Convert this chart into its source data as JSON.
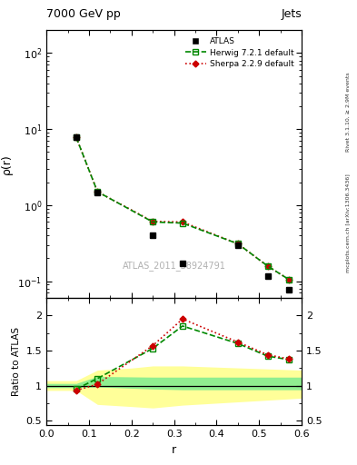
{
  "title": "7000 GeV pp",
  "title_right": "Jets",
  "xlabel": "r",
  "ylabel_main": "ρ(r)",
  "ylabel_ratio": "Ratio to ATLAS",
  "watermark": "ATLAS_2011_S8924791",
  "right_label_top": "Rivet 3.1.10, ≥ 2.9M events",
  "right_label_bottom": "mcplots.cern.ch [arXiv:1306.3436]",
  "atlas_x": [
    0.07,
    0.12,
    0.25,
    0.32,
    0.45,
    0.52,
    0.57
  ],
  "atlas_y": [
    7.8,
    1.45,
    0.4,
    0.17,
    0.3,
    0.115,
    0.077
  ],
  "herwig_x": [
    0.07,
    0.12,
    0.25,
    0.32,
    0.45,
    0.52,
    0.57
  ],
  "herwig_y": [
    7.8,
    1.5,
    0.6,
    0.58,
    0.31,
    0.158,
    0.105
  ],
  "sherpa_x": [
    0.07,
    0.12,
    0.25,
    0.32,
    0.45,
    0.52,
    0.57
  ],
  "sherpa_y": [
    7.8,
    1.5,
    0.61,
    0.6,
    0.31,
    0.158,
    0.105
  ],
  "herwig_ratio_x": [
    0.07,
    0.12,
    0.25,
    0.32,
    0.45,
    0.52,
    0.57
  ],
  "herwig_ratio_y": [
    0.95,
    1.1,
    1.53,
    1.85,
    1.6,
    1.42,
    1.37
  ],
  "sherpa_ratio_x": [
    0.07,
    0.12,
    0.25,
    0.32,
    0.45,
    0.52,
    0.57
  ],
  "sherpa_ratio_y": [
    0.93,
    1.02,
    1.57,
    1.95,
    1.62,
    1.44,
    1.38
  ],
  "green_band_x": [
    0.0,
    0.07,
    0.12,
    0.25,
    0.32,
    0.6
  ],
  "green_band_lo": [
    0.97,
    0.97,
    0.98,
    0.95,
    0.94,
    0.94
  ],
  "green_band_hi": [
    1.03,
    1.03,
    1.13,
    1.12,
    1.12,
    1.12
  ],
  "yellow_band_x": [
    0.0,
    0.07,
    0.12,
    0.2,
    0.25,
    0.32,
    0.6
  ],
  "yellow_band_lo": [
    0.93,
    0.93,
    0.73,
    0.7,
    0.68,
    0.72,
    0.82
  ],
  "yellow_band_hi": [
    1.07,
    1.07,
    1.22,
    1.25,
    1.28,
    1.28,
    1.22
  ],
  "xlim": [
    0.0,
    0.6
  ],
  "ylim_main_log": [
    0.06,
    200
  ],
  "ylim_ratio": [
    0.43,
    2.25
  ],
  "atlas_color": "#000000",
  "herwig_color": "#008800",
  "sherpa_color": "#cc0000",
  "green_band_color": "#90ee90",
  "yellow_band_color": "#ffff99",
  "legend_labels": [
    "ATLAS",
    "Herwig 7.2.1 default",
    "Sherpa 2.2.9 default"
  ]
}
